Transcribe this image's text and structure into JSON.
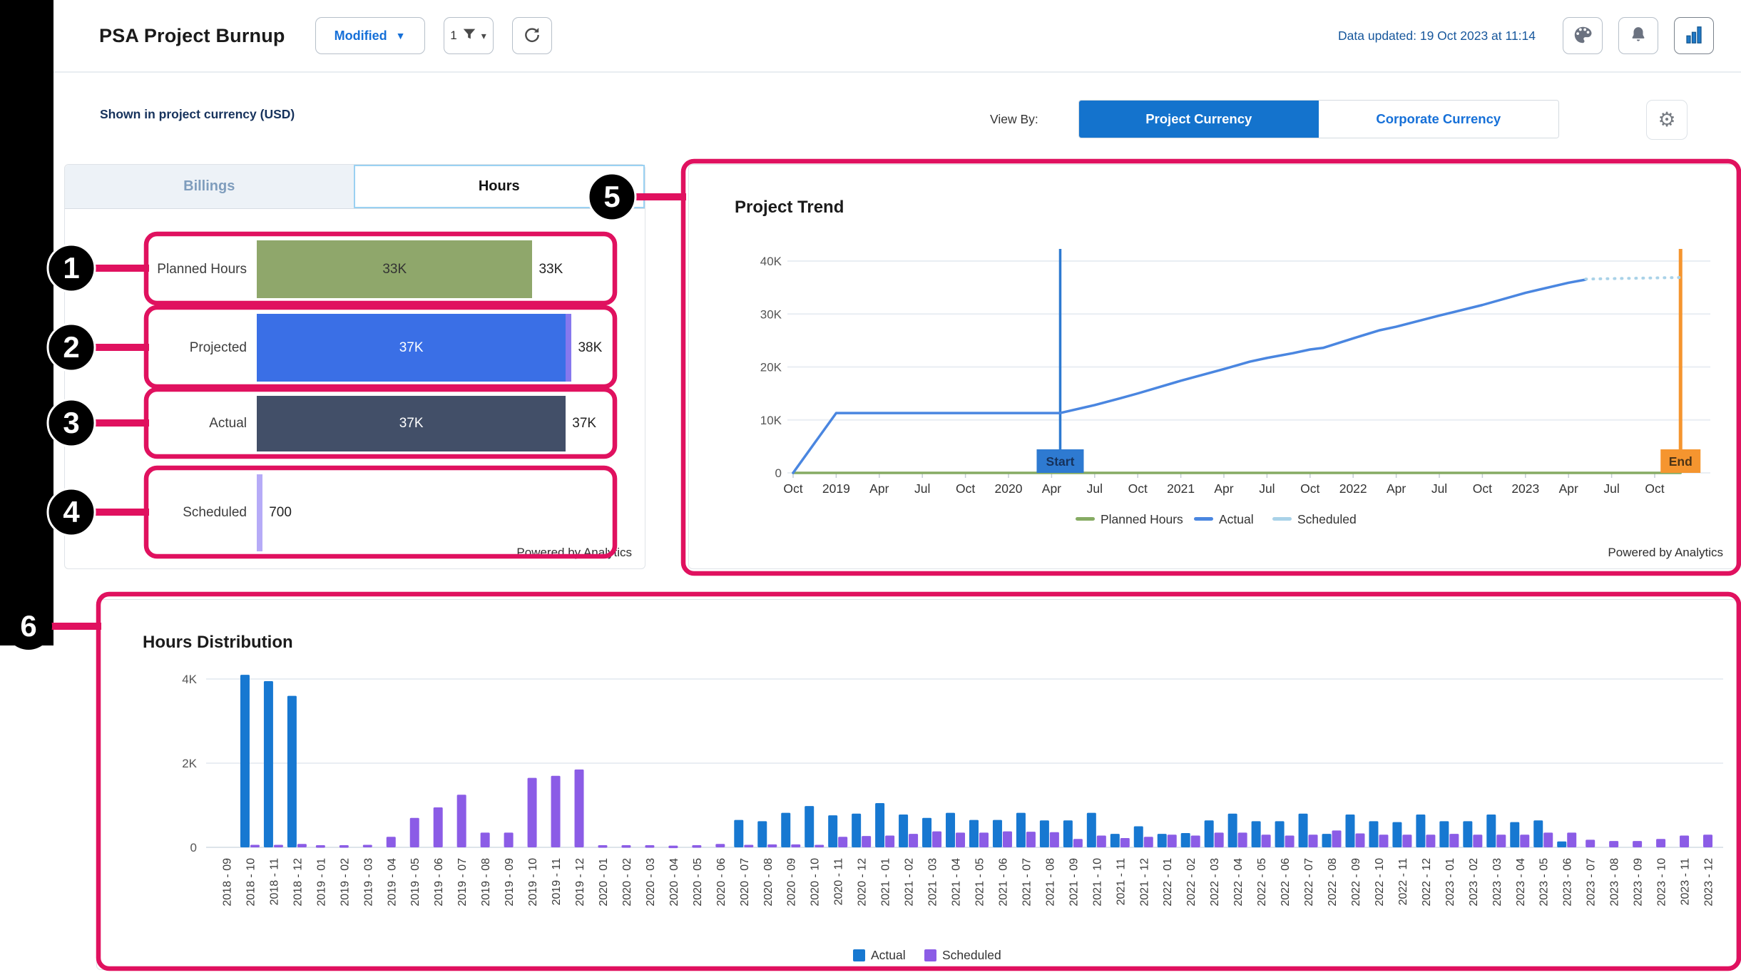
{
  "header": {
    "title": "PSA Project Burnup",
    "modified_label": "Modified",
    "filter_count": "1",
    "data_updated": "Data updated: 19 Oct 2023 at 11:14"
  },
  "toolbar": {
    "shown_in": "Shown in project currency (USD)",
    "view_by_label": "View By:",
    "project_currency": "Project Currency",
    "corporate_currency": "Corporate Currency"
  },
  "summary_panel": {
    "tabs": [
      {
        "label": "Billings",
        "active": false
      },
      {
        "label": "Hours",
        "active": true
      }
    ],
    "max_value": 38000,
    "metrics": [
      {
        "label": "Planned Hours",
        "total": "33K",
        "segments": [
          {
            "value": 33000,
            "color": "#8fa76b",
            "text": "33K",
            "text_color": "#333333"
          }
        ]
      },
      {
        "label": "Projected",
        "total": "38K",
        "segments": [
          {
            "value": 37000,
            "color": "#3a6fe6",
            "text": "37K",
            "text_color": "#ffffff"
          },
          {
            "value": 700,
            "color": "#8678ee",
            "text": "",
            "text_color": "#ffffff"
          }
        ]
      },
      {
        "label": "Actual",
        "total": "37K",
        "segments": [
          {
            "value": 37000,
            "color": "#424f68",
            "text": "37K",
            "text_color": "#ffffff"
          }
        ]
      },
      {
        "label": "Scheduled",
        "total": "700",
        "segments": [
          {
            "value": 700,
            "color": "#b6abf7",
            "text": "",
            "text_color": "#ffffff"
          }
        ]
      }
    ],
    "powered_by": "Powered by Analytics"
  },
  "trend_panel": {
    "powered_by": "Powered by Analytics"
  },
  "annotations": [
    "1",
    "2",
    "3",
    "4",
    "5",
    "6"
  ],
  "colors": {
    "annotation": "#e0115f",
    "badge_fill": "#000000",
    "badge_text": "#ffffff",
    "grid": "#e9eef3",
    "axis_text": "#3a3a3a"
  },
  "chart_data": [
    {
      "type": "line",
      "title": "Project Trend",
      "ylabel": "",
      "ylim": [
        0,
        40000
      ],
      "yticks": [
        "0",
        "10K",
        "20K",
        "30K",
        "40K"
      ],
      "xticks": [
        "Oct",
        "2019",
        "Apr",
        "Jul",
        "Oct",
        "2020",
        "Apr",
        "Jul",
        "Oct",
        "2021",
        "Apr",
        "Jul",
        "Oct",
        "2022",
        "Apr",
        "Jul",
        "Oct",
        "2023",
        "Apr",
        "Jul",
        "Oct"
      ],
      "x_unit": "quarter_index_from_Oct_2018",
      "grid": true,
      "legend_position": "bottom",
      "series": [
        {
          "name": "Planned Hours",
          "color": "#86ab63",
          "dashed": false,
          "points": [
            [
              0,
              0
            ],
            [
              20.6,
              0
            ]
          ]
        },
        {
          "name": "Actual",
          "color": "#4a86e0",
          "dashed": false,
          "points": [
            [
              0,
              0
            ],
            [
              1,
              11300
            ],
            [
              6.2,
              11300
            ],
            [
              7,
              12800
            ],
            [
              7.6,
              14100
            ],
            [
              8,
              15000
            ],
            [
              9,
              17400
            ],
            [
              10,
              19600
            ],
            [
              10.6,
              21000
            ],
            [
              11,
              21700
            ],
            [
              11.6,
              22600
            ],
            [
              12,
              23300
            ],
            [
              12.3,
              23600
            ],
            [
              13,
              25400
            ],
            [
              13.6,
              26900
            ],
            [
              14,
              27600
            ],
            [
              15,
              29700
            ],
            [
              16,
              31700
            ],
            [
              17,
              34000
            ],
            [
              18,
              35900
            ],
            [
              18.4,
              36500
            ]
          ]
        },
        {
          "name": "Scheduled",
          "color": "#a9d2e8",
          "dashed": true,
          "points": [
            [
              18.4,
              36600
            ],
            [
              20.6,
              36900
            ]
          ]
        }
      ],
      "markers": [
        {
          "label": "Start",
          "x": 6.2,
          "color": "#2e7ad1",
          "text_color": "#16325c"
        },
        {
          "label": "End",
          "x": 20.6,
          "color": "#f5952f",
          "text_color": "#4d3416"
        }
      ]
    },
    {
      "type": "bar",
      "title": "Hours Distribution",
      "ylim": [
        0,
        4400
      ],
      "yticks": [
        "0",
        "2K",
        "4K"
      ],
      "grid": true,
      "legend_position": "bottom",
      "categories": [
        "2018 - 09",
        "2018 - 10",
        "2018 - 11",
        "2018 - 12",
        "2019 - 01",
        "2019 - 02",
        "2019 - 03",
        "2019 - 04",
        "2019 - 05",
        "2019 - 06",
        "2019 - 07",
        "2019 - 08",
        "2019 - 09",
        "2019 - 10",
        "2019 - 11",
        "2019 - 12",
        "2020 - 01",
        "2020 - 02",
        "2020 - 03",
        "2020 - 04",
        "2020 - 05",
        "2020 - 06",
        "2020 - 07",
        "2020 - 08",
        "2020 - 09",
        "2020 - 10",
        "2020 - 11",
        "2020 - 12",
        "2021 - 01",
        "2021 - 02",
        "2021 - 03",
        "2021 - 04",
        "2021 - 05",
        "2021 - 06",
        "2021 - 07",
        "2021 - 08",
        "2021 - 09",
        "2021 - 10",
        "2021 - 11",
        "2021 - 12",
        "2022 - 01",
        "2022 - 02",
        "2022 - 03",
        "2022 - 04",
        "2022 - 05",
        "2022 - 06",
        "2022 - 07",
        "2022 - 08",
        "2022 - 09",
        "2022 - 10",
        "2022 - 11",
        "2022 - 12",
        "2023 - 01",
        "2023 - 02",
        "2023 - 03",
        "2023 - 04",
        "2023 - 05",
        "2023 - 06",
        "2023 - 07",
        "2023 - 08",
        "2023 - 09",
        "2023 - 10",
        "2023 - 11",
        "2023 - 12"
      ],
      "series": [
        {
          "name": "Actual",
          "color": "#1778d1",
          "values": [
            0,
            4100,
            3950,
            3600,
            0,
            0,
            0,
            0,
            0,
            0,
            0,
            0,
            0,
            0,
            0,
            0,
            0,
            0,
            0,
            0,
            0,
            0,
            650,
            620,
            820,
            980,
            760,
            800,
            1050,
            780,
            700,
            820,
            650,
            650,
            820,
            640,
            640,
            820,
            320,
            500,
            320,
            340,
            640,
            800,
            620,
            620,
            800,
            320,
            780,
            620,
            600,
            780,
            620,
            620,
            780,
            600,
            640,
            140,
            0,
            0,
            0,
            0,
            0,
            0
          ]
        },
        {
          "name": "Scheduled",
          "color": "#8b5ce6",
          "values": [
            0,
            60,
            60,
            80,
            50,
            50,
            60,
            250,
            700,
            950,
            1250,
            350,
            350,
            1650,
            1700,
            1850,
            50,
            50,
            50,
            40,
            50,
            80,
            60,
            70,
            70,
            60,
            250,
            270,
            280,
            320,
            380,
            350,
            350,
            380,
            370,
            360,
            200,
            280,
            220,
            250,
            300,
            280,
            350,
            350,
            300,
            280,
            300,
            400,
            330,
            300,
            300,
            300,
            320,
            300,
            300,
            300,
            350,
            350,
            180,
            150,
            150,
            200,
            280,
            300
          ]
        }
      ]
    }
  ]
}
